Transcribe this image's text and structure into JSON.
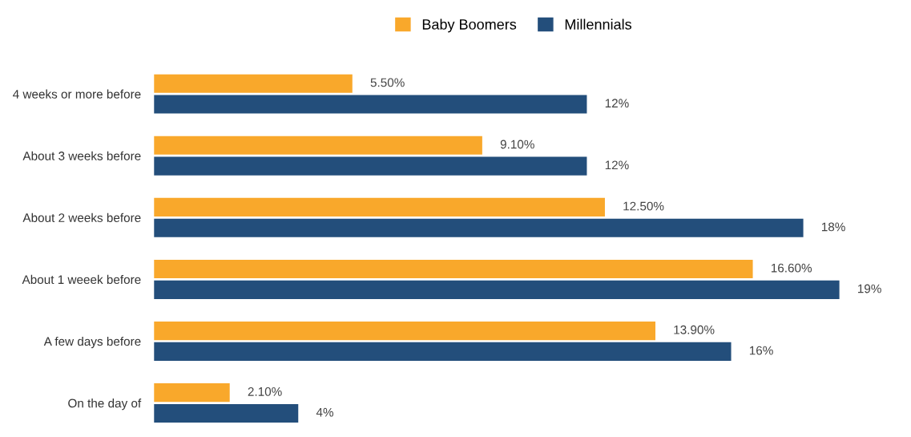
{
  "chart_data": {
    "type": "bar",
    "orientation": "horizontal",
    "categories": [
      "4 weeks or more before",
      "About 3 weeks before",
      "About 2 weeks before",
      "About 1 weeek before",
      "A few days before",
      "On the day of"
    ],
    "series": [
      {
        "name": "Baby Boomers",
        "color": "#f9a82b",
        "values": [
          5.5,
          9.1,
          12.5,
          16.6,
          13.9,
          2.1
        ],
        "value_labels": [
          "5.50%",
          "9.10%",
          "12.50%",
          "16.60%",
          "13.90%",
          "2.10%"
        ]
      },
      {
        "name": "Millennials",
        "color": "#234e7b",
        "values": [
          12,
          12,
          18,
          19,
          16,
          4
        ],
        "value_labels": [
          "12%",
          "12%",
          "18%",
          "19%",
          "16%",
          "4%"
        ]
      }
    ],
    "tick_labels": "y",
    "legend": "top",
    "grid": false
  }
}
